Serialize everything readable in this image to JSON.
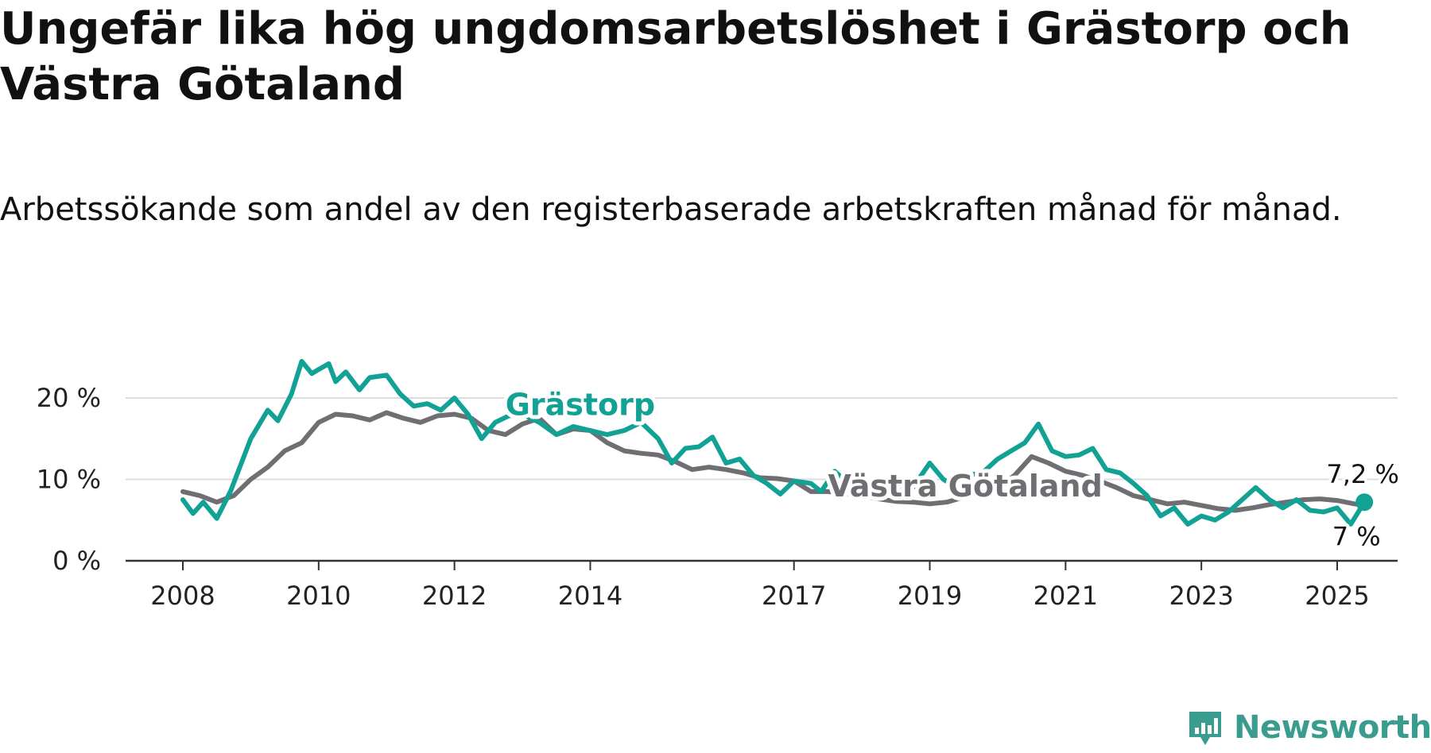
{
  "title": "Ungefär lika hög ungdomsarbetslöshet i Grästorp och Västra Götaland",
  "subtitle": "Arbetssökande som andel av den registerbaserade arbetskraften månad för månad.",
  "logo": {
    "text": "Newsworthy",
    "icon": "newsworthy-logo-icon",
    "color": "#3a9c8e"
  },
  "chart_data": {
    "type": "line",
    "title": "Ungefär lika hög ungdomsarbetslöshet i Grästorp och Västra Götaland",
    "subtitle": "Arbetssökande som andel av den registerbaserade arbetskraften månad för månad.",
    "xlabel": "",
    "ylabel": "",
    "x_unit": "year",
    "xlim": [
      2008,
      2025.5
    ],
    "ylim": [
      0,
      25
    ],
    "x_ticks": [
      {
        "value": 2008,
        "label": "2008"
      },
      {
        "value": 2010,
        "label": "2010"
      },
      {
        "value": 2012,
        "label": "2012"
      },
      {
        "value": 2014,
        "label": "2014"
      },
      {
        "value": 2017,
        "label": "2017"
      },
      {
        "value": 2019,
        "label": "2019"
      },
      {
        "value": 2021,
        "label": "2021"
      },
      {
        "value": 2023,
        "label": "2023"
      },
      {
        "value": 2025,
        "label": "2025"
      }
    ],
    "y_ticks": [
      {
        "value": 0,
        "label": "0 %"
      },
      {
        "value": 10,
        "label": "10 %"
      },
      {
        "value": 20,
        "label": "20 %"
      }
    ],
    "grid": "horizontal",
    "legend": "inline labels",
    "series": [
      {
        "name": "Västra Götaland",
        "color": "#6e6e73",
        "label_x": 2017.5,
        "label_y": 7.9,
        "end_label": "7 %",
        "points": [
          [
            2008.0,
            8.5
          ],
          [
            2008.25,
            8.0
          ],
          [
            2008.5,
            7.2
          ],
          [
            2008.75,
            8.0
          ],
          [
            2009.0,
            10.0
          ],
          [
            2009.25,
            11.5
          ],
          [
            2009.5,
            13.5
          ],
          [
            2009.75,
            14.5
          ],
          [
            2010.0,
            17.0
          ],
          [
            2010.25,
            18.0
          ],
          [
            2010.5,
            17.8
          ],
          [
            2010.75,
            17.3
          ],
          [
            2011.0,
            18.2
          ],
          [
            2011.25,
            17.5
          ],
          [
            2011.5,
            17.0
          ],
          [
            2011.75,
            17.8
          ],
          [
            2012.0,
            18.0
          ],
          [
            2012.25,
            17.5
          ],
          [
            2012.5,
            16.0
          ],
          [
            2012.75,
            15.5
          ],
          [
            2013.0,
            16.8
          ],
          [
            2013.25,
            17.5
          ],
          [
            2013.5,
            15.5
          ],
          [
            2013.75,
            16.2
          ],
          [
            2014.0,
            16.0
          ],
          [
            2014.25,
            14.5
          ],
          [
            2014.5,
            13.5
          ],
          [
            2014.75,
            13.2
          ],
          [
            2015.0,
            13.0
          ],
          [
            2015.25,
            12.2
          ],
          [
            2015.5,
            11.2
          ],
          [
            2015.75,
            11.5
          ],
          [
            2016.0,
            11.2
          ],
          [
            2016.25,
            10.8
          ],
          [
            2016.5,
            10.2
          ],
          [
            2016.75,
            10.1
          ],
          [
            2017.0,
            9.8
          ],
          [
            2017.25,
            8.5
          ],
          [
            2017.5,
            8.5
          ],
          [
            2017.75,
            8.3
          ],
          [
            2018.0,
            8.0
          ],
          [
            2018.25,
            7.6
          ],
          [
            2018.5,
            7.3
          ],
          [
            2018.75,
            7.2
          ],
          [
            2019.0,
            7.0
          ],
          [
            2019.25,
            7.2
          ],
          [
            2019.5,
            7.8
          ],
          [
            2019.75,
            8.5
          ],
          [
            2020.0,
            9.0
          ],
          [
            2020.25,
            10.5
          ],
          [
            2020.5,
            12.8
          ],
          [
            2020.75,
            12.0
          ],
          [
            2021.0,
            11.0
          ],
          [
            2021.25,
            10.5
          ],
          [
            2021.5,
            9.8
          ],
          [
            2021.75,
            9.0
          ],
          [
            2022.0,
            8.0
          ],
          [
            2022.25,
            7.5
          ],
          [
            2022.5,
            7.0
          ],
          [
            2022.75,
            7.2
          ],
          [
            2023.0,
            6.8
          ],
          [
            2023.25,
            6.4
          ],
          [
            2023.5,
            6.2
          ],
          [
            2023.75,
            6.5
          ],
          [
            2024.0,
            6.9
          ],
          [
            2024.25,
            7.2
          ],
          [
            2024.5,
            7.5
          ],
          [
            2024.75,
            7.6
          ],
          [
            2025.0,
            7.4
          ],
          [
            2025.25,
            7.0
          ],
          [
            2025.4,
            6.8
          ]
        ]
      },
      {
        "name": "Grästorp",
        "color": "#12a295",
        "label_x": 2012.75,
        "label_y": 17.9,
        "end_label": "7,2 %",
        "points": [
          [
            2008.0,
            7.5
          ],
          [
            2008.15,
            5.8
          ],
          [
            2008.3,
            7.2
          ],
          [
            2008.5,
            5.2
          ],
          [
            2008.7,
            8.5
          ],
          [
            2009.0,
            15.0
          ],
          [
            2009.25,
            18.5
          ],
          [
            2009.4,
            17.2
          ],
          [
            2009.6,
            20.5
          ],
          [
            2009.75,
            24.5
          ],
          [
            2009.9,
            23.0
          ],
          [
            2010.0,
            23.5
          ],
          [
            2010.15,
            24.2
          ],
          [
            2010.25,
            22.0
          ],
          [
            2010.4,
            23.2
          ],
          [
            2010.6,
            21.0
          ],
          [
            2010.75,
            22.5
          ],
          [
            2011.0,
            22.8
          ],
          [
            2011.2,
            20.5
          ],
          [
            2011.4,
            19.0
          ],
          [
            2011.6,
            19.3
          ],
          [
            2011.8,
            18.5
          ],
          [
            2012.0,
            20.0
          ],
          [
            2012.2,
            18.0
          ],
          [
            2012.4,
            15.0
          ],
          [
            2012.6,
            17.0
          ],
          [
            2012.8,
            17.8
          ],
          [
            2013.0,
            18.0
          ],
          [
            2013.25,
            17.0
          ],
          [
            2013.5,
            15.5
          ],
          [
            2013.75,
            16.5
          ],
          [
            2014.0,
            16.0
          ],
          [
            2014.25,
            15.5
          ],
          [
            2014.5,
            16.0
          ],
          [
            2014.75,
            17.0
          ],
          [
            2015.0,
            15.0
          ],
          [
            2015.2,
            12.0
          ],
          [
            2015.4,
            13.8
          ],
          [
            2015.6,
            14.0
          ],
          [
            2015.8,
            15.2
          ],
          [
            2016.0,
            12.0
          ],
          [
            2016.2,
            12.5
          ],
          [
            2016.4,
            10.5
          ],
          [
            2016.6,
            9.5
          ],
          [
            2016.8,
            8.2
          ],
          [
            2017.0,
            9.8
          ],
          [
            2017.25,
            9.5
          ],
          [
            2017.4,
            8.5
          ],
          [
            2017.6,
            11.0
          ],
          [
            2017.8,
            9.5
          ],
          [
            2018.0,
            9.8
          ],
          [
            2018.25,
            9.0
          ],
          [
            2018.5,
            8.5
          ],
          [
            2018.75,
            9.0
          ],
          [
            2019.0,
            12.0
          ],
          [
            2019.2,
            10.0
          ],
          [
            2019.4,
            9.0
          ],
          [
            2019.6,
            10.5
          ],
          [
            2019.8,
            11.0
          ],
          [
            2020.0,
            12.5
          ],
          [
            2020.2,
            13.5
          ],
          [
            2020.4,
            14.5
          ],
          [
            2020.6,
            16.8
          ],
          [
            2020.8,
            13.5
          ],
          [
            2021.0,
            12.8
          ],
          [
            2021.2,
            13.0
          ],
          [
            2021.4,
            13.8
          ],
          [
            2021.6,
            11.2
          ],
          [
            2021.8,
            10.8
          ],
          [
            2022.0,
            9.5
          ],
          [
            2022.2,
            8.0
          ],
          [
            2022.4,
            5.5
          ],
          [
            2022.6,
            6.5
          ],
          [
            2022.8,
            4.5
          ],
          [
            2023.0,
            5.5
          ],
          [
            2023.2,
            5.0
          ],
          [
            2023.4,
            6.0
          ],
          [
            2023.6,
            7.5
          ],
          [
            2023.8,
            9.0
          ],
          [
            2024.0,
            7.5
          ],
          [
            2024.2,
            6.5
          ],
          [
            2024.4,
            7.5
          ],
          [
            2024.6,
            6.2
          ],
          [
            2024.8,
            6.0
          ],
          [
            2025.0,
            6.5
          ],
          [
            2025.2,
            4.5
          ],
          [
            2025.4,
            7.2
          ]
        ]
      }
    ]
  }
}
